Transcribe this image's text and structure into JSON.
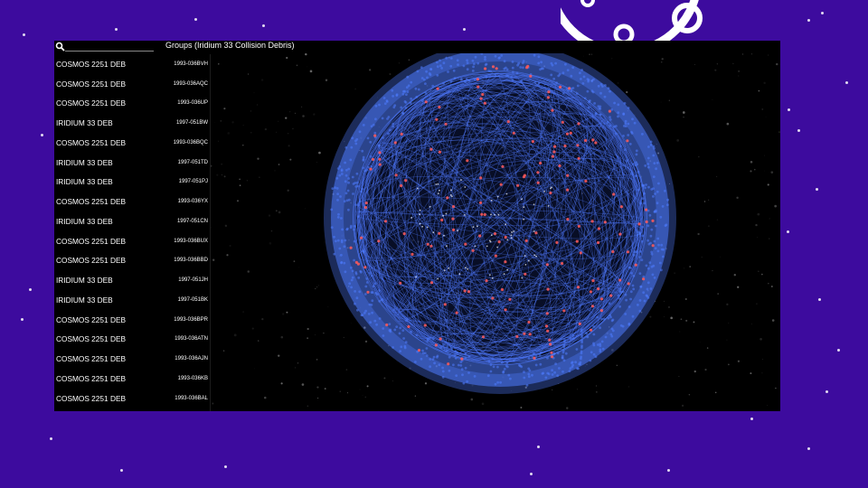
{
  "search": {
    "placeholder": "",
    "value": ""
  },
  "group_title": "Groups (Iridium 33 Collision Debris)",
  "objects": [
    {
      "name": "COSMOS 2251 DEB",
      "id": "1993-036BVH"
    },
    {
      "name": "COSMOS 2251 DEB",
      "id": "1993-036AQC"
    },
    {
      "name": "COSMOS 2251 DEB",
      "id": "1993-036UP"
    },
    {
      "name": "IRIDIUM 33 DEB",
      "id": "1997-051BW"
    },
    {
      "name": "COSMOS 2251 DEB",
      "id": "1993-036BQC"
    },
    {
      "name": "IRIDIUM 33 DEB",
      "id": "1997-051TD"
    },
    {
      "name": "IRIDIUM 33 DEB",
      "id": "1997-051PJ"
    },
    {
      "name": "COSMOS 2251 DEB",
      "id": "1993-036YX"
    },
    {
      "name": "IRIDIUM 33 DEB",
      "id": "1997-051CN"
    },
    {
      "name": "COSMOS 2251 DEB",
      "id": "1993-036BUX"
    },
    {
      "name": "COSMOS 2251 DEB",
      "id": "1993-036BBD"
    },
    {
      "name": "IRIDIUM 33 DEB",
      "id": "1997-051JH"
    },
    {
      "name": "IRIDIUM 33 DEB",
      "id": "1997-051BK"
    },
    {
      "name": "COSMOS 2251 DEB",
      "id": "1993-036BPR"
    },
    {
      "name": "COSMOS 2251 DEB",
      "id": "1993-036ATN"
    },
    {
      "name": "COSMOS 2251 DEB",
      "id": "1993-036AJN"
    },
    {
      "name": "COSMOS 2251 DEB",
      "id": "1993-036KB"
    },
    {
      "name": "COSMOS 2251 DEB",
      "id": "1993-036BAL"
    }
  ],
  "colors": {
    "slide_background": "#3d0b9e",
    "orbit_blue": "#4f7bff",
    "debris_red": "#ff5a5a",
    "app_background": "#000000"
  },
  "icons": {
    "search": "search-icon",
    "planet": "planet-decoration-icon"
  }
}
